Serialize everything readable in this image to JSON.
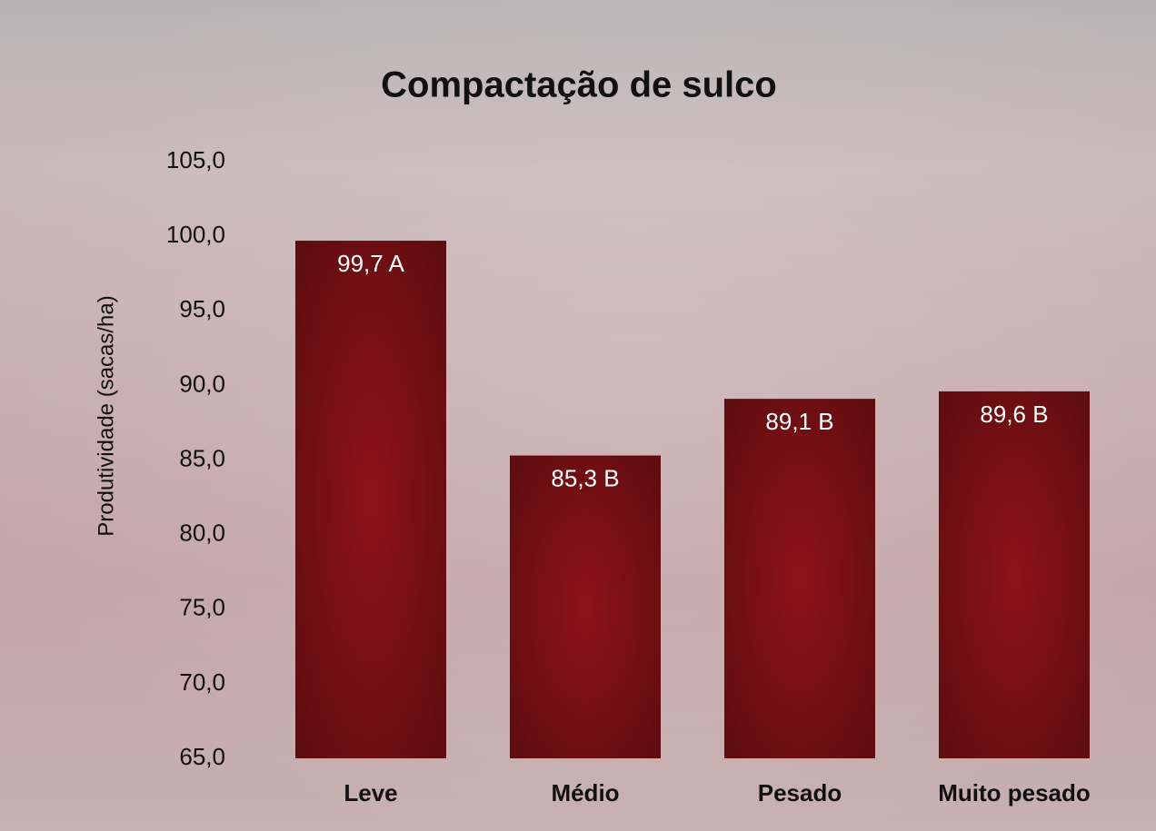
{
  "chart_data": {
    "type": "bar",
    "title": "Compactação de sulco",
    "y_label": "Produtividade (sacas/ha)",
    "categories": [
      "Leve",
      "Médio",
      "Pesado",
      "Muito pesado"
    ],
    "values": [
      99.7,
      85.3,
      89.1,
      89.6
    ],
    "value_labels": [
      "99,7 A",
      "85,3 B",
      "89,1 B",
      "89,6 B"
    ],
    "color": "#8e1318",
    "ylim": [
      65,
      105
    ],
    "yticks": [
      {
        "value": 65,
        "label": "65,0"
      },
      {
        "value": 70,
        "label": "70,0"
      },
      {
        "value": 75,
        "label": "75,0"
      },
      {
        "value": 80,
        "label": "80,0"
      },
      {
        "value": 85,
        "label": "85,0"
      },
      {
        "value": 90,
        "label": "90,0"
      },
      {
        "value": 95,
        "label": "95,0"
      },
      {
        "value": 100,
        "label": "100,0"
      },
      {
        "value": 105,
        "label": "105,0"
      }
    ],
    "grid": false
  }
}
